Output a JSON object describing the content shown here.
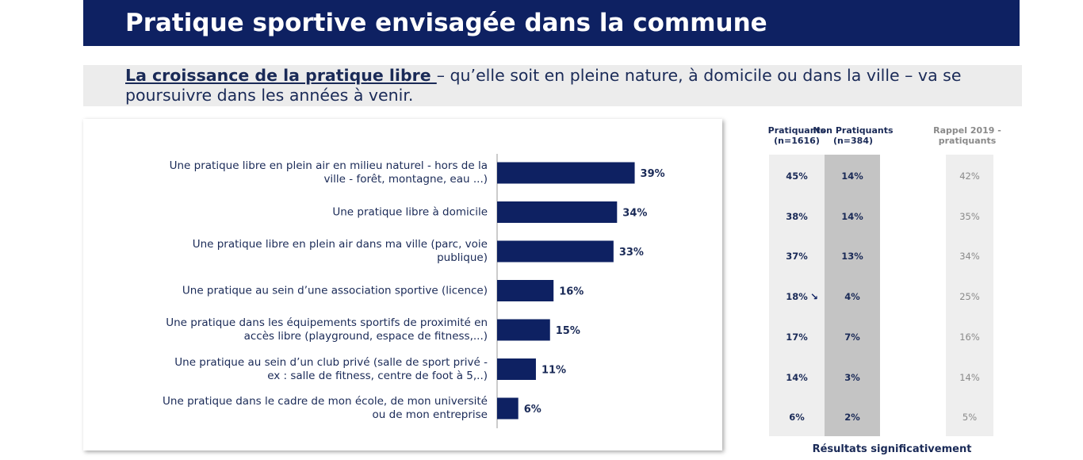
{
  "header": {
    "title": "Pratique sportive envisagée dans la commune"
  },
  "subtitle": {
    "lead": "La croissance de la pratique libre ",
    "rest": " – qu’elle soit en pleine nature, à domicile ou dans la ville – va se poursuivre dans les années à venir."
  },
  "colors": {
    "title_band": "#0e2162",
    "bar": "#0e2162",
    "practitioners_col": "#eeeeee",
    "non_practitioners_col": "#c4c4c4",
    "recall_col": "#eeeeee"
  },
  "table": {
    "headers": {
      "practitioners": "Pratiquants\n(n=1616)",
      "non_practitioners": "Non Pratiquants\n(n=384)",
      "recall": "Rappel 2019 -\npratiquants"
    },
    "practitioners": [
      "45%",
      "38%",
      "37%",
      "18%",
      "17%",
      "14%",
      "6%"
    ],
    "non_practitioners": [
      "14%",
      "14%",
      "13%",
      "4%",
      "7%",
      "3%",
      "2%"
    ],
    "recall": [
      "42%",
      "35%",
      "34%",
      "25%",
      "16%",
      "14%",
      "5%"
    ],
    "indicator_row": 3,
    "indicator_icon": "down-right-arrow-icon",
    "footnote": "Résultats significativement"
  },
  "chart_data": {
    "type": "bar",
    "orientation": "horizontal",
    "categories": [
      "Une pratique libre en plein air en milieu naturel - hors de la ville - forêt, montagne, eau ...)",
      "Une pratique libre à domicile",
      "Une pratique libre en plein air dans ma ville (parc, voie publique)",
      "Une pratique au sein d’une association sportive (licence)",
      "Une pratique dans les équipements sportifs de proximité en accès libre (playground, espace de fitness,...)",
      "Une pratique au sein d’un club privé (salle de sport privé - ex : salle de fitness, centre de foot à 5,..)",
      "Une pratique dans le cadre de mon école, de mon université ou de mon entreprise"
    ],
    "values": [
      39,
      34,
      33,
      16,
      15,
      11,
      6
    ],
    "value_labels": [
      "39%",
      "34%",
      "33%",
      "16%",
      "15%",
      "11%",
      "6%"
    ],
    "xlim": [
      0,
      100
    ],
    "grid": false,
    "legend": "none"
  }
}
